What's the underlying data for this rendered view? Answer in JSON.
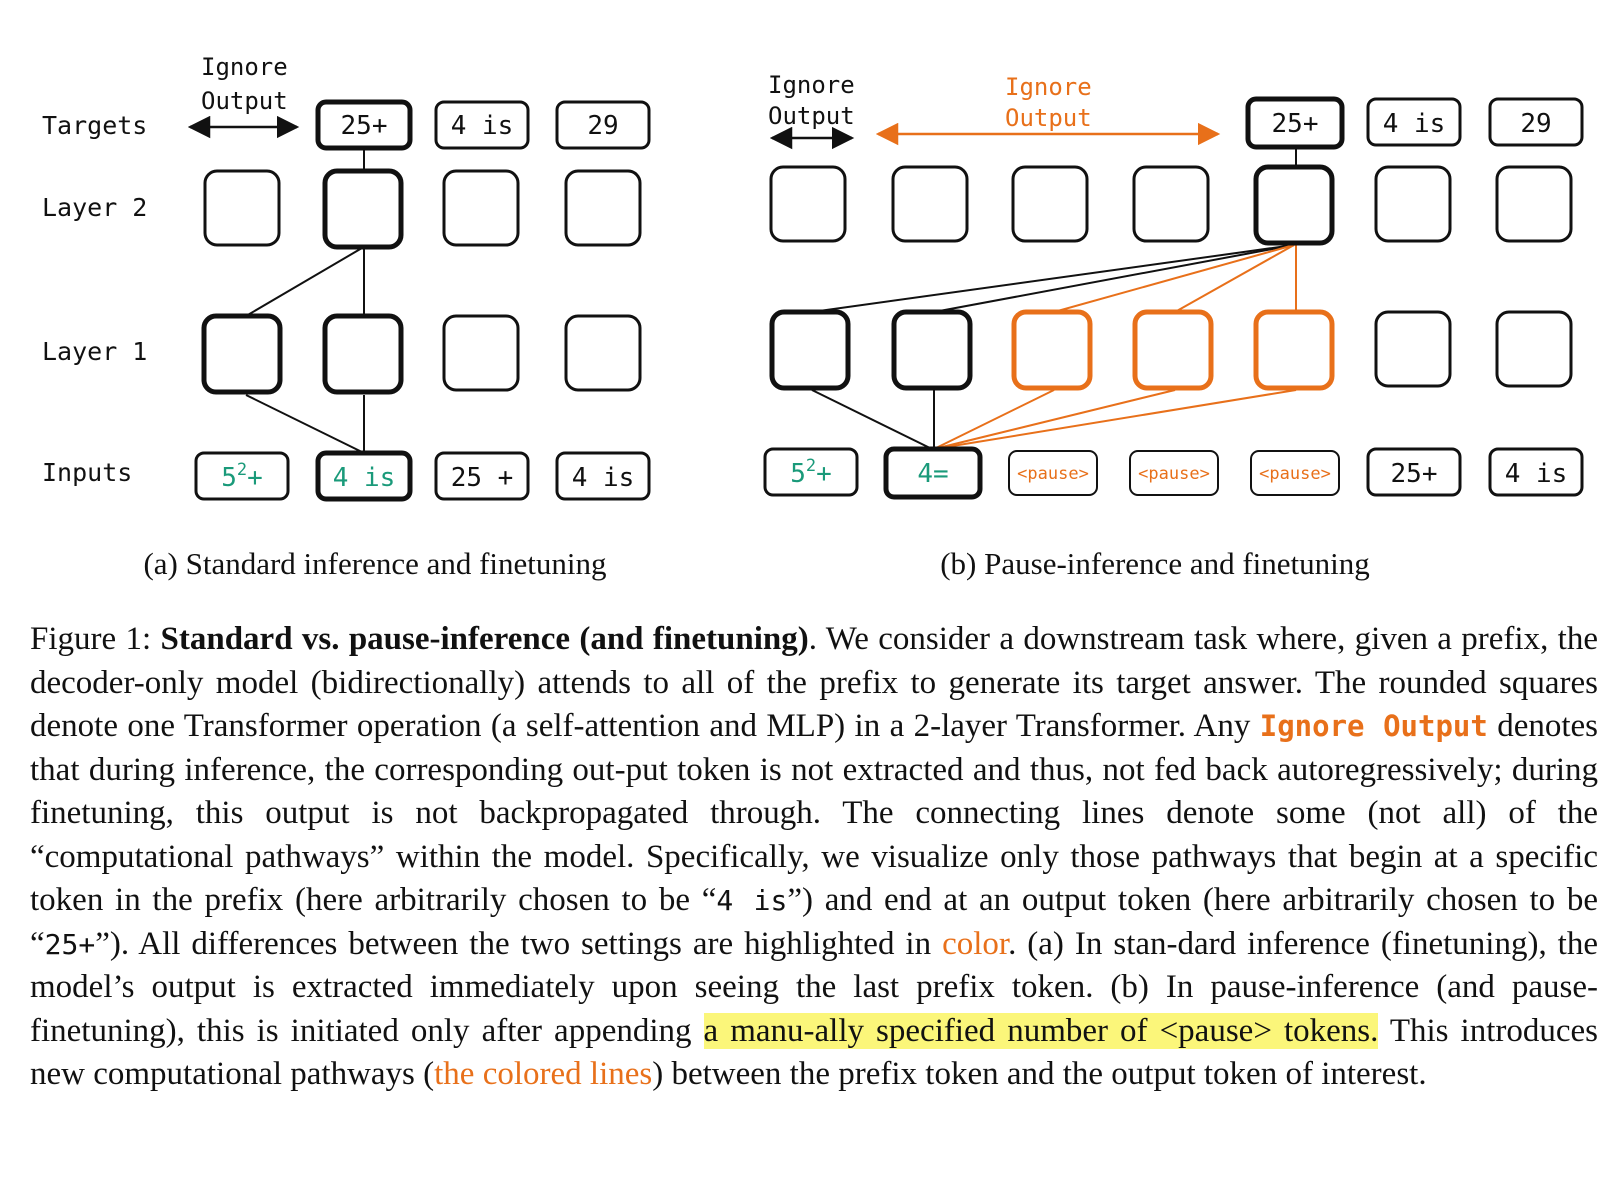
{
  "colors": {
    "orange": "#e8701a",
    "green": "#1a9a7a",
    "highlight": "#fbf67a",
    "ink": "#111111"
  },
  "panel_a": {
    "targets_label": "Targets",
    "layer2_label": "Layer 2",
    "layer1_label": "Layer 1",
    "inputs_label": "Inputs",
    "ignore_line1": "Ignore",
    "ignore_line2": "Output",
    "targets": [
      "25+",
      "4 is",
      "29"
    ],
    "inputs": [
      "5",
      "2",
      "+",
      "4 is",
      "25 +",
      "4 is"
    ],
    "subcaption": "(a) Standard inference and finetuning"
  },
  "panel_b": {
    "ignore_black_line1": "Ignore",
    "ignore_black_line2": "Output",
    "ignore_orange_line1": "Ignore",
    "ignore_orange_line2": "Output",
    "targets": [
      "25+",
      "4 is",
      "29"
    ],
    "inputs": [
      "5",
      "2",
      "+",
      "4=",
      "<pause>",
      "<pause>",
      "<pause>",
      "25+",
      "4 is"
    ],
    "subcaption": "(b) Pause-inference and finetuning"
  },
  "caption": {
    "figure_label": "Figure 1: ",
    "bold_title": "Standard vs. pause-inference (and finetuning)",
    "t1": ". We consider a downstream task where, given a prefix, the decoder-only model (bidirectionally) attends to all of the prefix to generate its target answer. The rounded squares denote one Transformer operation (a self-attention and MLP) in a 2-layer Transformer. Any ",
    "ignore_output_code": "Ignore Output",
    "t2": " denotes that during inference, the corresponding out-put token is not extracted and thus, not fed back autoregressively; during finetuning, this output is not backpropagated through. The connecting lines denote some (not all) of the “computational pathways” within the model. Specifically, we visualize only those pathways that begin at a specific token in the prefix (here arbitrarily chosen to be “",
    "code_4is": "4 is",
    "t3": "”) and end at an output token (here arbitrarily chosen to be “",
    "code_25": "25+",
    "t4": "”). All differences between the two settings are highlighted in ",
    "color_word": "color",
    "t5": ". (a) In stan-dard inference (finetuning), the model’s output is extracted immediately upon seeing the last prefix token. (b) In pause-inference (and pause-finetuning), this is initiated only after appending ",
    "highlight_text": "a manu-ally specified number of <pause> tokens.",
    "t6": " This introduces new computational pathways (",
    "colored_lines": "the colored lines",
    "t7": ") between the prefix token and the output token of interest."
  }
}
